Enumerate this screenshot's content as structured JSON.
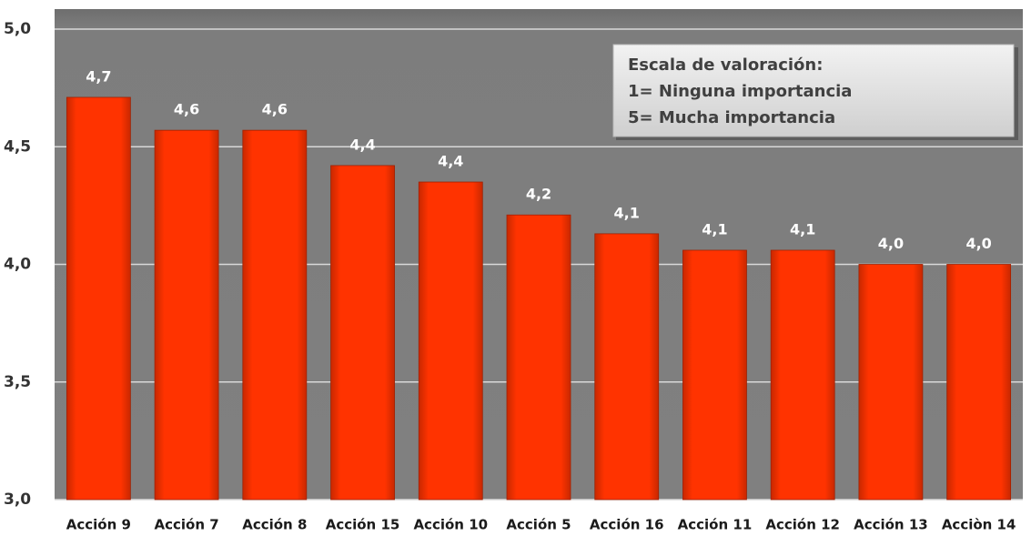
{
  "chart_data": {
    "type": "bar",
    "categories": [
      "Acción 9",
      "Acción 7",
      "Acción 8",
      "Acción 15",
      "Acción 10",
      "Acción 5",
      "Acción 16",
      "Acción 11",
      "Acción 12",
      "Acción 13",
      "Acciòn 14"
    ],
    "values": [
      4.71,
      4.57,
      4.57,
      4.42,
      4.35,
      4.21,
      4.13,
      4.06,
      4.06,
      4.0,
      4.0
    ],
    "value_labels": [
      "4,7",
      "4,6",
      "4,6",
      "4,4",
      "4,4",
      "4,2",
      "4,1",
      "4,1",
      "4,1",
      "4,0",
      "4,0"
    ],
    "color": "#ff3300",
    "ylim": [
      3,
      5
    ],
    "yticks": [
      {
        "value": 3,
        "label": "3,0"
      },
      {
        "value": 3.5,
        "label": "3,5"
      },
      {
        "value": 4,
        "label": "4,0"
      },
      {
        "value": 4.5,
        "label": "4,5"
      },
      {
        "value": 5,
        "label": "5,0"
      }
    ],
    "grid": true,
    "annotation": [
      "Escala de valoración:",
      "1= Ninguna importancia",
      "5= Mucha importancia"
    ]
  }
}
